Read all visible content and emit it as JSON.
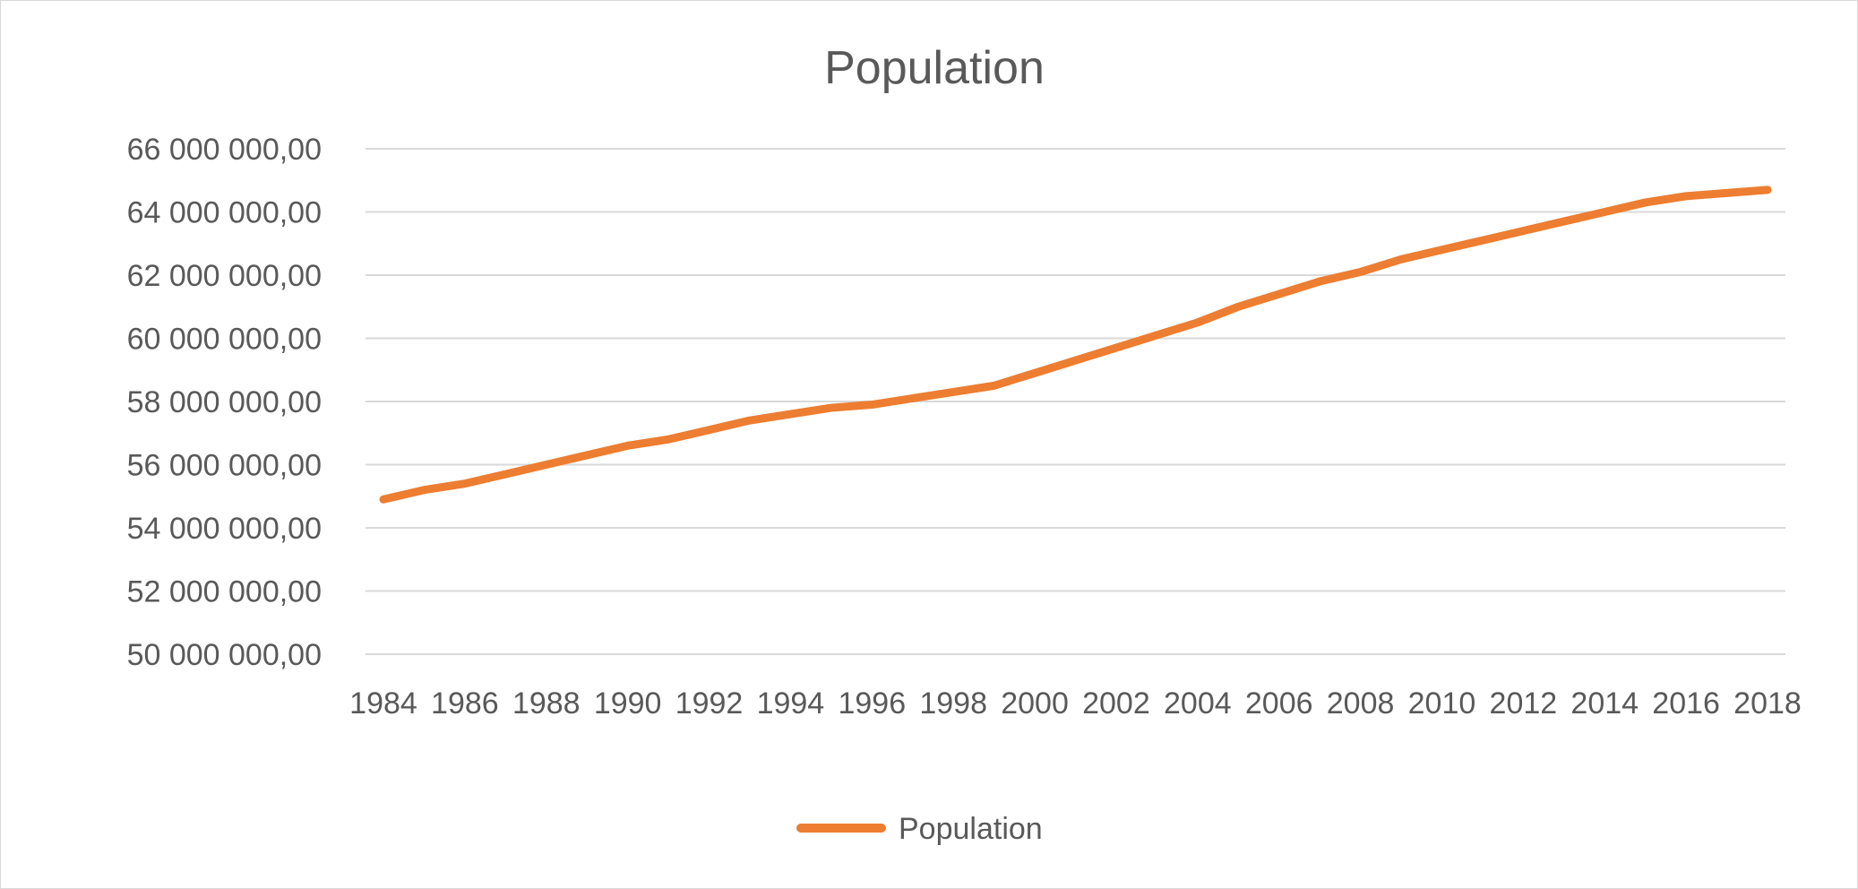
{
  "chart_data": {
    "type": "line",
    "title": "Population",
    "xlabel": "",
    "ylabel": "",
    "x": [
      1984,
      1985,
      1986,
      1987,
      1988,
      1989,
      1990,
      1991,
      1992,
      1993,
      1994,
      1995,
      1996,
      1997,
      1998,
      1999,
      2000,
      2001,
      2002,
      2003,
      2004,
      2005,
      2006,
      2007,
      2008,
      2009,
      2010,
      2011,
      2012,
      2013,
      2014,
      2015,
      2016,
      2017,
      2018
    ],
    "x_tick_labels": [
      "1984",
      "1986",
      "1988",
      "1990",
      "1992",
      "1994",
      "1996",
      "1998",
      "2000",
      "2002",
      "2004",
      "2006",
      "2008",
      "2010",
      "2012",
      "2014",
      "2016",
      "2018"
    ],
    "y_tick_labels": [
      "66 000 000,00",
      "64 000 000,00",
      "62 000 000,00",
      "60 000 000,00",
      "58 000 000,00",
      "56 000 000,00",
      "54 000 000,00",
      "52 000 000,00",
      "50 000 000,00"
    ],
    "ylim": [
      50000000,
      66000000
    ],
    "series": [
      {
        "name": "Population",
        "color": "#ed7d31",
        "values": [
          54900000,
          55200000,
          55400000,
          55700000,
          56000000,
          56300000,
          56600000,
          56800000,
          57100000,
          57400000,
          57600000,
          57800000,
          57900000,
          58100000,
          58300000,
          58500000,
          58900000,
          59300000,
          59700000,
          60100000,
          60500000,
          61000000,
          61400000,
          61800000,
          62100000,
          62500000,
          62800000,
          63100000,
          63400000,
          63700000,
          64000000,
          64300000,
          64500000,
          64600000,
          64700000
        ]
      }
    ],
    "grid": true,
    "legend": "bottom"
  }
}
